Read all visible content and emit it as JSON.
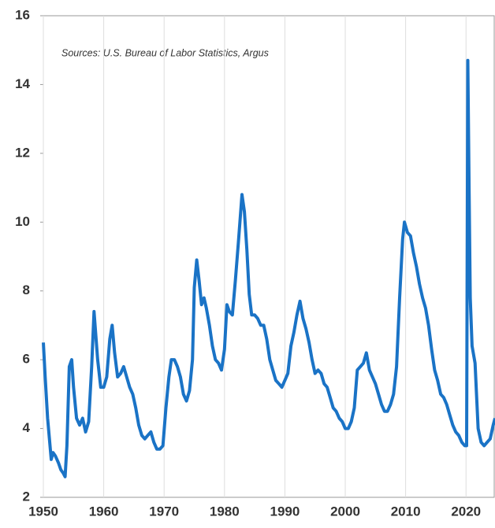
{
  "chart_data": {
    "type": "line",
    "annotation": "Sources: U.S. Bureau of Labor Statistics, Argus",
    "color": "#1a73c6",
    "x": [
      1950.0,
      1950.3,
      1950.7,
      1951.0,
      1951.3,
      1951.6,
      1952.0,
      1952.5,
      1952.9,
      1953.3,
      1953.6,
      1953.9,
      1954.3,
      1954.7,
      1955.0,
      1955.5,
      1956.0,
      1956.5,
      1957.0,
      1957.5,
      1958.0,
      1958.4,
      1958.7,
      1959.0,
      1959.5,
      1960.0,
      1960.5,
      1961.0,
      1961.4,
      1961.8,
      1962.3,
      1962.8,
      1963.3,
      1963.8,
      1964.3,
      1964.8,
      1965.3,
      1965.8,
      1966.3,
      1966.8,
      1967.3,
      1967.8,
      1968.3,
      1968.8,
      1969.3,
      1969.8,
      1970.3,
      1970.8,
      1971.2,
      1971.7,
      1972.2,
      1972.7,
      1973.2,
      1973.7,
      1974.2,
      1974.7,
      1975.0,
      1975.4,
      1975.8,
      1976.2,
      1976.6,
      1977.0,
      1977.5,
      1978.0,
      1978.5,
      1979.0,
      1979.5,
      1980.0,
      1980.4,
      1980.8,
      1981.3,
      1981.8,
      1982.3,
      1982.9,
      1983.3,
      1983.7,
      1984.1,
      1984.5,
      1985.0,
      1985.5,
      1986.0,
      1986.5,
      1987.0,
      1987.5,
      1988.0,
      1988.5,
      1989.0,
      1989.5,
      1990.0,
      1990.5,
      1991.0,
      1991.5,
      1992.0,
      1992.5,
      1993.0,
      1993.5,
      1994.0,
      1994.5,
      1995.0,
      1995.5,
      1996.0,
      1996.5,
      1997.0,
      1997.5,
      1998.0,
      1998.5,
      1999.0,
      1999.5,
      2000.0,
      2000.5,
      2001.0,
      2001.5,
      2002.0,
      2002.5,
      2003.0,
      2003.5,
      2004.0,
      2004.5,
      2005.0,
      2005.5,
      2006.0,
      2006.5,
      2007.0,
      2007.5,
      2008.0,
      2008.5,
      2009.0,
      2009.5,
      2009.8,
      2010.3,
      2010.8,
      2011.3,
      2011.8,
      2012.3,
      2012.8,
      2013.3,
      2013.8,
      2014.3,
      2014.8,
      2015.3,
      2015.8,
      2016.3,
      2016.8,
      2017.3,
      2017.8,
      2018.3,
      2018.8,
      2019.3,
      2019.8,
      2020.1,
      2020.3,
      2020.5,
      2020.7,
      2021.0,
      2021.5,
      2022.0,
      2022.5,
      2023.0,
      2023.5,
      2024.0,
      2024.5,
      2024.8
    ],
    "values": [
      6.5,
      5.5,
      4.3,
      3.7,
      3.1,
      3.3,
      3.2,
      3.0,
      2.8,
      2.7,
      2.6,
      3.5,
      5.8,
      6.0,
      5.2,
      4.3,
      4.1,
      4.3,
      3.9,
      4.2,
      5.8,
      7.4,
      6.7,
      6.0,
      5.2,
      5.2,
      5.5,
      6.6,
      7.0,
      6.2,
      5.5,
      5.6,
      5.8,
      5.5,
      5.2,
      5.0,
      4.6,
      4.1,
      3.8,
      3.7,
      3.8,
      3.9,
      3.6,
      3.4,
      3.4,
      3.5,
      4.6,
      5.5,
      6.0,
      6.0,
      5.8,
      5.5,
      5.0,
      4.8,
      5.1,
      6.0,
      8.1,
      8.9,
      8.3,
      7.6,
      7.8,
      7.5,
      7.0,
      6.4,
      6.0,
      5.9,
      5.7,
      6.3,
      7.6,
      7.4,
      7.3,
      8.3,
      9.4,
      10.8,
      10.3,
      9.2,
      7.9,
      7.3,
      7.3,
      7.2,
      7.0,
      7.0,
      6.6,
      6.0,
      5.7,
      5.4,
      5.3,
      5.2,
      5.4,
      5.6,
      6.4,
      6.8,
      7.3,
      7.7,
      7.2,
      6.9,
      6.5,
      6.0,
      5.6,
      5.7,
      5.6,
      5.3,
      5.2,
      4.9,
      4.6,
      4.5,
      4.3,
      4.2,
      4.0,
      4.0,
      4.2,
      4.6,
      5.7,
      5.8,
      5.9,
      6.2,
      5.7,
      5.5,
      5.3,
      5.0,
      4.7,
      4.5,
      4.5,
      4.7,
      5.0,
      5.8,
      7.8,
      9.5,
      10.0,
      9.7,
      9.6,
      9.1,
      8.7,
      8.2,
      7.8,
      7.5,
      7.0,
      6.3,
      5.7,
      5.4,
      5.0,
      4.9,
      4.7,
      4.4,
      4.1,
      3.9,
      3.8,
      3.6,
      3.5,
      3.5,
      14.7,
      11.0,
      7.8,
      6.4,
      5.9,
      4.0,
      3.6,
      3.5,
      3.6,
      3.7,
      4.1,
      4.3
    ],
    "xlim": [
      1950,
      2024.8
    ],
    "xticks": [
      1950,
      1960,
      1970,
      1980,
      1990,
      2000,
      2010,
      2020
    ],
    "ylim": [
      2,
      16
    ],
    "yticks": [
      2,
      4,
      6,
      8,
      10,
      12,
      14,
      16
    ],
    "grid": "x"
  }
}
